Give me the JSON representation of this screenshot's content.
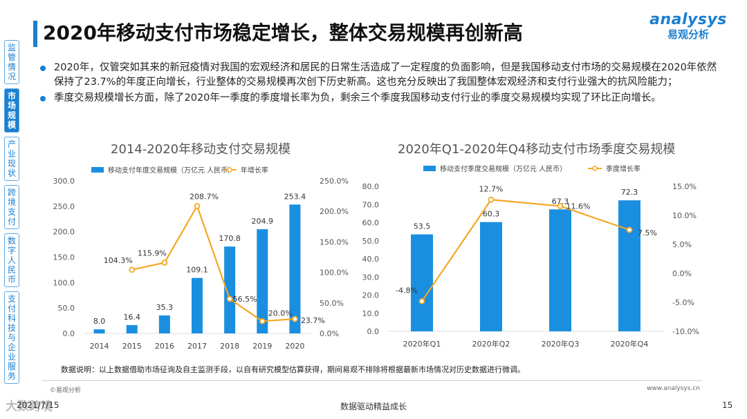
{
  "header": {
    "title": "2020年移动支付市场稳定增长，整体交易规模再创新高"
  },
  "logo": {
    "en": "analysys",
    "cn": "易观分析"
  },
  "sidebar": {
    "items": [
      {
        "label": "监管情况",
        "active": false
      },
      {
        "label": "市场规模",
        "active": true
      },
      {
        "label": "产业现状",
        "active": false
      },
      {
        "label": "跨境支付",
        "active": false
      },
      {
        "label": "数字人民币",
        "active": false
      },
      {
        "label": "支付科技与企业服务",
        "active": false
      }
    ]
  },
  "bullets": [
    "2020年，仅管突如其来的新冠疫情对我国的宏观经济和居民的日常生活造成了一定程度的负面影响，但是我国移动支付市场的交易规模在2020年依然保持了23.7%的年度正向增长，行业整体的交易规模再次创下历史新高。这也充分反映出了我国整体宏观经济和支付行业强大的抗风险能力；",
    "季度交易规模增长方面，除了2020年一季度的季度增长率为负，剩余三个季度我国移动支付行业的季度交易规模均实现了环比正向增长。"
  ],
  "chart_data": [
    {
      "type": "bar",
      "title": "2014-2020年移动支付交易规模",
      "categories": [
        "2014",
        "2015",
        "2016",
        "2017",
        "2018",
        "2019",
        "2020"
      ],
      "series": [
        {
          "name": "移动支付年度交易规模（万亿元 人民币）",
          "kind": "bar",
          "axis": "left",
          "values": [
            8.0,
            16.4,
            35.3,
            109.1,
            170.8,
            204.9,
            253.4
          ],
          "labels": [
            "8.0",
            "16.4",
            "35.3",
            "109.1",
            "170.8",
            "204.9",
            "253.4"
          ],
          "color": "#1a8fe0"
        },
        {
          "name": "年增长率",
          "kind": "line",
          "axis": "right",
          "values": [
            null,
            104.3,
            115.9,
            208.7,
            56.5,
            20.0,
            23.7
          ],
          "labels": [
            "",
            "104.3%",
            "115.9%",
            "208.7%",
            "56.5%",
            "20.0%",
            "23.7%"
          ],
          "color": "#f5a623"
        }
      ],
      "ylim_left": [
        0,
        300
      ],
      "yticks_left": [
        "0.0",
        "50.0",
        "100.0",
        "150.0",
        "200.0",
        "250.0",
        "300.0"
      ],
      "ylim_right": [
        0,
        250
      ],
      "yticks_right": [
        "0.0%",
        "50.0%",
        "100.0%",
        "150.0%",
        "200.0%",
        "250.0%"
      ]
    },
    {
      "type": "bar",
      "title": "2020年Q1-2020年Q4移动支付市场季度交易规模",
      "categories": [
        "2020年Q1",
        "2020年Q2",
        "2020年Q3",
        "2020年Q4"
      ],
      "series": [
        {
          "name": "移动支付季度交易规模（万亿元 人民币）",
          "kind": "bar",
          "axis": "left",
          "values": [
            53.5,
            60.3,
            67.3,
            72.3
          ],
          "labels": [
            "53.5",
            "60.3",
            "67.3",
            "72.3"
          ],
          "color": "#1a8fe0"
        },
        {
          "name": "季度增长率",
          "kind": "line",
          "axis": "right",
          "values": [
            -4.8,
            12.7,
            11.6,
            7.5
          ],
          "labels": [
            "-4.8%",
            "12.7%",
            "11.6%",
            "7.5%"
          ],
          "color": "#f5a623"
        }
      ],
      "ylim_left": [
        0,
        80
      ],
      "yticks_left": [
        "0.0",
        "10.0",
        "20.0",
        "30.0",
        "40.0",
        "50.0",
        "60.0",
        "70.0",
        "80.0"
      ],
      "ylim_right": [
        -10,
        15
      ],
      "yticks_right": [
        "-10.0%",
        "-5.0%",
        "0.0%",
        "5.0%",
        "10.0%",
        "15.0%"
      ]
    }
  ],
  "note": "数据说明：以上数据借助市场征询及自主监测手段，以自有研究模型估算获得，期间易观不排除将根据最新市场情况对历史数据进行微调。",
  "copyright": "©易观分析",
  "url": "www.analysys.cn",
  "footer": {
    "date": "2021/7/15",
    "center": "数据驱动精益成长",
    "page": "15",
    "stamp": "大数跨境"
  },
  "colors": {
    "accent": "#1a7fd1",
    "bar": "#1a8fe0",
    "line": "#f5a623"
  }
}
